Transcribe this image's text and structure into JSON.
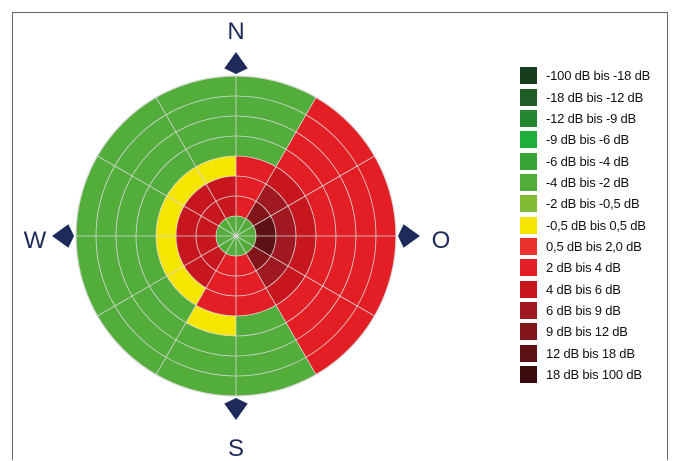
{
  "compass": {
    "north": "N",
    "east": "O",
    "south": "S",
    "west": "W"
  },
  "legend": [
    {
      "label": "-100 dB bis -18 dB",
      "color": "#153d1c"
    },
    {
      "label": "-18 dB bis -12 dB",
      "color": "#1f5c26"
    },
    {
      "label": "-12 dB bis -9 dB",
      "color": "#26852f"
    },
    {
      "label": "-9 dB bis -6 dB",
      "color": "#1fae3c"
    },
    {
      "label": "-6 dB bis -4 dB",
      "color": "#37a337"
    },
    {
      "label": "-4 dB bis -2 dB",
      "color": "#52ad3a"
    },
    {
      "label": "-2 dB bis -0,5 dB",
      "color": "#7fbb35"
    },
    {
      "label": "-0,5 dB bis 0,5 dB",
      "color": "#f4e600"
    },
    {
      "label": "0,5 dB bis 2,0 dB",
      "color": "#e8332e"
    },
    {
      "label": "2 dB bis 4 dB",
      "color": "#e31e24"
    },
    {
      "label": "4 dB bis 6 dB",
      "color": "#c8161f"
    },
    {
      "label": "6 dB bis 9 dB",
      "color": "#a01820"
    },
    {
      "label": "9 dB bis 12 dB",
      "color": "#82151a"
    },
    {
      "label": "12 dB bis 18 dB",
      "color": "#5e1114"
    },
    {
      "label": "18 dB bis 100 dB",
      "color": "#3a0b0d"
    }
  ],
  "polar": {
    "rings": 8,
    "spokes": 12,
    "colors": {
      "green": "#52ad3a",
      "yellow": "#f4e600",
      "red": "#e31e24",
      "red_mid": "#c8161f",
      "red_dark": "#a01820",
      "red_darker": "#82151a",
      "red_darkest": "#5e1114",
      "grid": "#d9d9d9",
      "compass": "#1e2b5a"
    }
  }
}
